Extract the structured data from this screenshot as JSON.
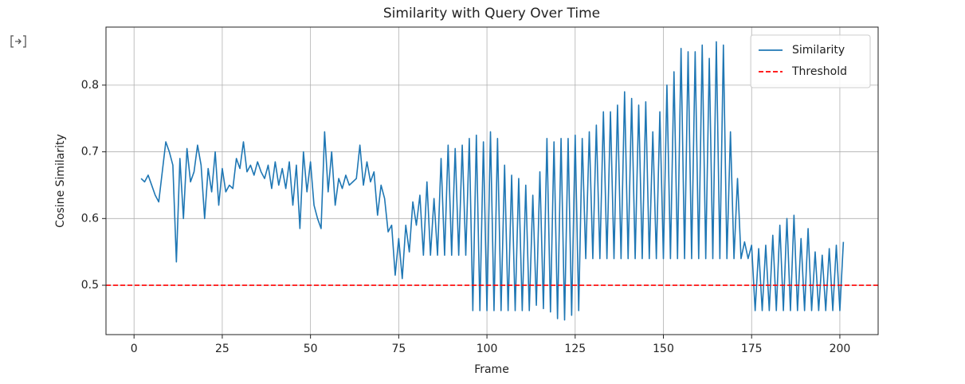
{
  "chart_data": {
    "type": "line",
    "title": "Similarity with Query Over Time",
    "xlabel": "Frame",
    "ylabel": "Cosine Similarity",
    "x": [
      2,
      3,
      4,
      5,
      6,
      7,
      8,
      9,
      10,
      11,
      12,
      13,
      14,
      15,
      16,
      17,
      18,
      19,
      20,
      21,
      22,
      23,
      24,
      25,
      26,
      27,
      28,
      29,
      30,
      31,
      32,
      33,
      34,
      35,
      36,
      37,
      38,
      39,
      40,
      41,
      42,
      43,
      44,
      45,
      46,
      47,
      48,
      49,
      50,
      51,
      52,
      53,
      54,
      55,
      56,
      57,
      58,
      59,
      60,
      61,
      62,
      63,
      64,
      65,
      66,
      67,
      68,
      69,
      70,
      71,
      72,
      73,
      74,
      75,
      76,
      77,
      78,
      79,
      80,
      81,
      82,
      83,
      84,
      85,
      86,
      87,
      88,
      89,
      90,
      91,
      92,
      93,
      94,
      95,
      96,
      97,
      98,
      99,
      100,
      101,
      102,
      103,
      104,
      105,
      106,
      107,
      108,
      109,
      110,
      111,
      112,
      113,
      114,
      115,
      116,
      117,
      118,
      119,
      120,
      121,
      122,
      123,
      124,
      125,
      126,
      127,
      128,
      129,
      130,
      131,
      132,
      133,
      134,
      135,
      136,
      137,
      138,
      139,
      140,
      141,
      142,
      143,
      144,
      145,
      146,
      147,
      148,
      149,
      150,
      151,
      152,
      153,
      154,
      155,
      156,
      157,
      158,
      159,
      160,
      161,
      162,
      163,
      164,
      165,
      166,
      167,
      168,
      169,
      170,
      171,
      172,
      173,
      174,
      175,
      176,
      177,
      178,
      179,
      180,
      181,
      182,
      183,
      184,
      185,
      186,
      187,
      188,
      189,
      190,
      191,
      192,
      193,
      194,
      195,
      196,
      197,
      198,
      199,
      200,
      201
    ],
    "series": [
      {
        "name": "Similarity",
        "color": "#1f77b4",
        "values": [
          0.66,
          0.655,
          0.665,
          0.65,
          0.635,
          0.625,
          0.67,
          0.715,
          0.7,
          0.68,
          0.535,
          0.69,
          0.6,
          0.705,
          0.655,
          0.67,
          0.71,
          0.68,
          0.6,
          0.675,
          0.64,
          0.7,
          0.62,
          0.675,
          0.64,
          0.65,
          0.645,
          0.69,
          0.675,
          0.715,
          0.67,
          0.68,
          0.665,
          0.685,
          0.67,
          0.66,
          0.68,
          0.645,
          0.685,
          0.65,
          0.675,
          0.645,
          0.685,
          0.62,
          0.68,
          0.585,
          0.7,
          0.64,
          0.685,
          0.62,
          0.6,
          0.585,
          0.73,
          0.64,
          0.7,
          0.62,
          0.66,
          0.645,
          0.665,
          0.65,
          0.655,
          0.66,
          0.71,
          0.65,
          0.685,
          0.655,
          0.67,
          0.605,
          0.65,
          0.63,
          0.58,
          0.59,
          0.515,
          0.57,
          0.51,
          0.59,
          0.55,
          0.625,
          0.59,
          0.635,
          0.545,
          0.655,
          0.545,
          0.63,
          0.545,
          0.69,
          0.545,
          0.71,
          0.545,
          0.705,
          0.545,
          0.71,
          0.545,
          0.72,
          0.462,
          0.725,
          0.462,
          0.715,
          0.462,
          0.73,
          0.462,
          0.72,
          0.462,
          0.68,
          0.462,
          0.665,
          0.462,
          0.66,
          0.462,
          0.65,
          0.462,
          0.635,
          0.47,
          0.67,
          0.465,
          0.72,
          0.46,
          0.715,
          0.45,
          0.72,
          0.448,
          0.72,
          0.455,
          0.725,
          0.462,
          0.72,
          0.54,
          0.73,
          0.54,
          0.74,
          0.54,
          0.76,
          0.54,
          0.76,
          0.54,
          0.77,
          0.54,
          0.79,
          0.54,
          0.78,
          0.54,
          0.77,
          0.54,
          0.775,
          0.54,
          0.73,
          0.54,
          0.76,
          0.54,
          0.8,
          0.54,
          0.82,
          0.54,
          0.855,
          0.54,
          0.85,
          0.54,
          0.85,
          0.54,
          0.86,
          0.54,
          0.84,
          0.54,
          0.865,
          0.54,
          0.86,
          0.54,
          0.73,
          0.54,
          0.66,
          0.54,
          0.565,
          0.54,
          0.56,
          0.462,
          0.555,
          0.462,
          0.56,
          0.462,
          0.575,
          0.462,
          0.59,
          0.462,
          0.6,
          0.462,
          0.605,
          0.462,
          0.57,
          0.462,
          0.585,
          0.462,
          0.55,
          0.462,
          0.545,
          0.462,
          0.555,
          0.462,
          0.56,
          0.462,
          0.565
        ]
      }
    ],
    "threshold": {
      "name": "Threshold",
      "value": 0.5,
      "color": "#ff0000"
    },
    "xlim": [
      -7.95,
      210.85
    ],
    "ylim": [
      0.426,
      0.887
    ],
    "xticks": [
      0,
      25,
      50,
      75,
      100,
      125,
      150,
      175,
      200
    ],
    "yticks": [
      0.5,
      0.6,
      0.7,
      0.8
    ],
    "grid": true,
    "legend": "upper right"
  }
}
